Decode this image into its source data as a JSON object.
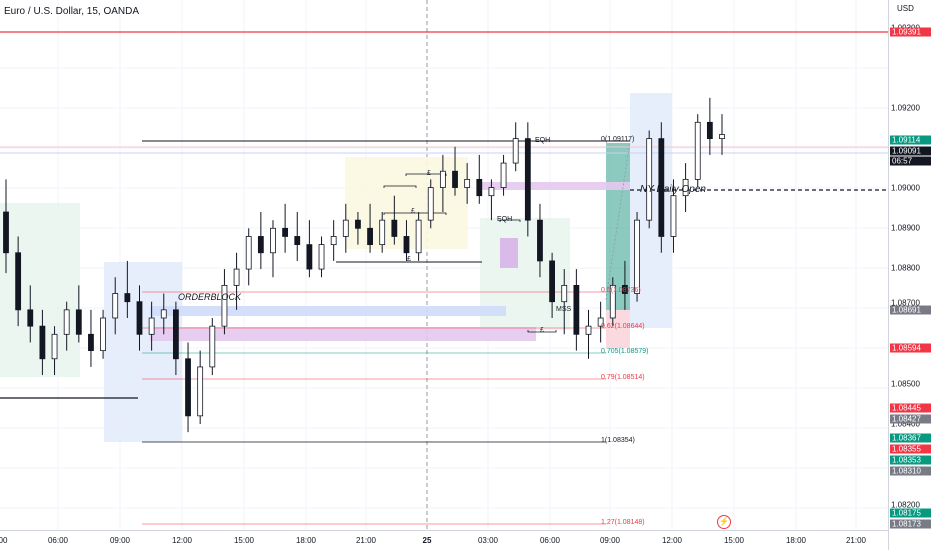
{
  "header": {
    "symbol_title": "Euro / U.S. Dollar, 15, OANDA"
  },
  "price_axis": {
    "currency": "USD",
    "labels": [
      "1.09300",
      "1.09200",
      "1.09000",
      "1.08900",
      "1.08800",
      "1.08700",
      "1.08500",
      "1.08400",
      "1.08200"
    ],
    "tags": [
      {
        "text": "1.09391",
        "color": "#f23645"
      },
      {
        "text": "1.09114",
        "color": "#089981"
      },
      {
        "text": "1.09091",
        "color": "#131722"
      },
      {
        "text": "06:57",
        "color": "#131722"
      },
      {
        "text": "1.08691",
        "color": "#787b86"
      },
      {
        "text": "1.08594",
        "color": "#f23645"
      },
      {
        "text": "1.08445",
        "color": "#f23645"
      },
      {
        "text": "1.08427",
        "color": "#787b86"
      },
      {
        "text": "1.08367",
        "color": "#089981"
      },
      {
        "text": "1.08355",
        "color": "#f23645"
      },
      {
        "text": "1.08353",
        "color": "#089981"
      },
      {
        "text": "1.08310",
        "color": "#787b86"
      },
      {
        "text": "1.08175",
        "color": "#089981"
      },
      {
        "text": "1.08173",
        "color": "#787b86"
      }
    ]
  },
  "time_axis": {
    "labels": [
      "00",
      "06:00",
      "09:00",
      "12:00",
      "15:00",
      "18:00",
      "21:00",
      "25",
      "03:00",
      "06:00",
      "09:00",
      "12:00",
      "15:00",
      "18:00",
      "21:00"
    ]
  },
  "annotations": {
    "orderblock": "ORDERBLOCK",
    "ny_daily_open": "NY Daily Open",
    "eqh_top": "EQH",
    "eqh_mid": "EQH",
    "mss": "MSS",
    "liq_marks": [
      "£",
      "£",
      "£",
      "£"
    ]
  },
  "fib_levels": [
    {
      "label": "0(1.09117)",
      "color": "#131722"
    },
    {
      "label": "0.5(1.08736)",
      "color": "#f23645"
    },
    {
      "label": "0.62(1.08644)",
      "color": "#f23645"
    },
    {
      "label": "0.705(1.08579)",
      "color": "#089981"
    },
    {
      "label": "0.79(1.08514)",
      "color": "#f23645"
    },
    {
      "label": "1(1.08354)",
      "color": "#131722"
    },
    {
      "label": "1.27(1.08148)",
      "color": "#f23645"
    }
  ],
  "colors": {
    "up": "#ffffff",
    "down": "#131722",
    "bullish": "#089981",
    "bearish": "#f23645",
    "grid": "#f0f3fa"
  },
  "chart_data": {
    "type": "candlestick",
    "title": "Euro / U.S. Dollar, 15, OANDA",
    "ylim": [
      1.0812,
      1.0942
    ],
    "y_unit": "USD",
    "candles": [
      [
        1.089,
        1.0898,
        1.0875,
        1.088
      ],
      [
        1.088,
        1.0884,
        1.0862,
        1.0866
      ],
      [
        1.0866,
        1.0872,
        1.0858,
        1.0862
      ],
      [
        1.0862,
        1.0866,
        1.085,
        1.0854
      ],
      [
        1.0854,
        1.0862,
        1.085,
        1.086
      ],
      [
        1.086,
        1.0868,
        1.0856,
        1.0866
      ],
      [
        1.0866,
        1.0872,
        1.0858,
        1.086
      ],
      [
        1.086,
        1.0866,
        1.0852,
        1.0856
      ],
      [
        1.0856,
        1.0866,
        1.0854,
        1.0864
      ],
      [
        1.0864,
        1.0874,
        1.086,
        1.087
      ],
      [
        1.087,
        1.0878,
        1.0864,
        1.0868
      ],
      [
        1.0868,
        1.0872,
        1.0856,
        1.086
      ],
      [
        1.086,
        1.0868,
        1.0856,
        1.0864
      ],
      [
        1.0864,
        1.087,
        1.086,
        1.0866
      ],
      [
        1.0866,
        1.0868,
        1.085,
        1.0854
      ],
      [
        1.0854,
        1.0858,
        1.0836,
        1.084
      ],
      [
        1.084,
        1.0856,
        1.0838,
        1.0852
      ],
      [
        1.0852,
        1.0864,
        1.085,
        1.0862
      ],
      [
        1.0862,
        1.0876,
        1.086,
        1.0872
      ],
      [
        1.0872,
        1.088,
        1.0866,
        1.0876
      ],
      [
        1.0876,
        1.0886,
        1.0872,
        1.0884
      ],
      [
        1.0884,
        1.089,
        1.0876,
        1.088
      ],
      [
        1.088,
        1.0888,
        1.0874,
        1.0886
      ],
      [
        1.0886,
        1.0892,
        1.088,
        1.0884
      ],
      [
        1.0884,
        1.089,
        1.0878,
        1.0882
      ],
      [
        1.0882,
        1.0888,
        1.0874,
        1.0876
      ],
      [
        1.0876,
        1.0884,
        1.0874,
        1.0882
      ],
      [
        1.0882,
        1.0888,
        1.0878,
        1.0884
      ],
      [
        1.0884,
        1.0892,
        1.088,
        1.0888
      ],
      [
        1.0888,
        1.089,
        1.0882,
        1.0886
      ],
      [
        1.0886,
        1.0892,
        1.088,
        1.0882
      ],
      [
        1.0882,
        1.089,
        1.088,
        1.0888
      ],
      [
        1.0888,
        1.0894,
        1.0882,
        1.0884
      ],
      [
        1.0884,
        1.0888,
        1.0878,
        1.088
      ],
      [
        1.088,
        1.089,
        1.0878,
        1.0888
      ],
      [
        1.0888,
        1.0898,
        1.0886,
        1.0896
      ],
      [
        1.0896,
        1.0904,
        1.089,
        1.09
      ],
      [
        1.09,
        1.0906,
        1.0894,
        1.0896
      ],
      [
        1.0896,
        1.0902,
        1.0892,
        1.0898
      ],
      [
        1.0898,
        1.0904,
        1.0892,
        1.0894
      ],
      [
        1.0894,
        1.0898,
        1.0888,
        1.0896
      ],
      [
        1.0896,
        1.0904,
        1.0894,
        1.0902
      ],
      [
        1.0902,
        1.0912,
        1.09,
        1.0908
      ],
      [
        1.0908,
        1.0912,
        1.0884,
        1.0888
      ],
      [
        1.0888,
        1.0892,
        1.0874,
        1.0878
      ],
      [
        1.0878,
        1.088,
        1.0864,
        1.0868
      ],
      [
        1.0868,
        1.0876,
        1.086,
        1.0872
      ],
      [
        1.0872,
        1.0876,
        1.0856,
        1.086
      ],
      [
        1.086,
        1.0866,
        1.0854,
        1.0862
      ],
      [
        1.0862,
        1.0868,
        1.0858,
        1.0864
      ],
      [
        1.0864,
        1.0874,
        1.0862,
        1.0872
      ],
      [
        1.0872,
        1.0878,
        1.0866,
        1.087
      ],
      [
        1.087,
        1.089,
        1.0868,
        1.0888
      ],
      [
        1.0888,
        1.091,
        1.0886,
        1.0908
      ],
      [
        1.0908,
        1.0912,
        1.088,
        1.0884
      ],
      [
        1.0884,
        1.0898,
        1.088,
        1.0894
      ],
      [
        1.0894,
        1.0902,
        1.089,
        1.0898
      ],
      [
        1.0898,
        1.0914,
        1.0896,
        1.0912
      ],
      [
        1.0912,
        1.0918,
        1.0904,
        1.0908
      ],
      [
        1.0908,
        1.0914,
        1.0904,
        1.0909
      ]
    ]
  }
}
